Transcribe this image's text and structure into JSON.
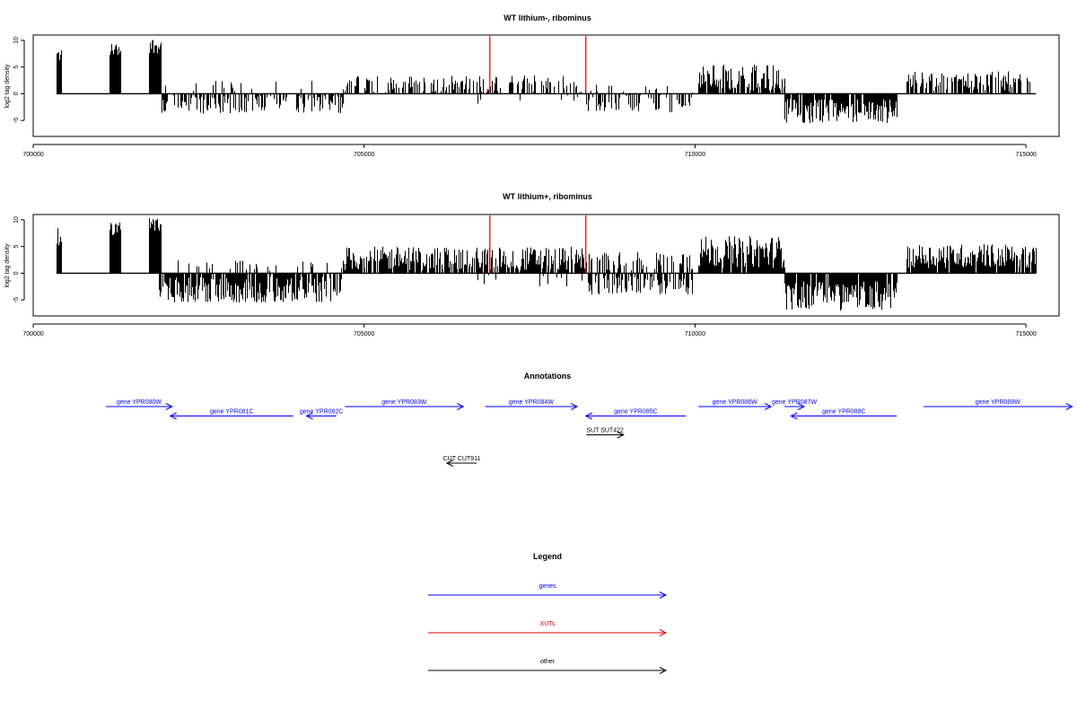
{
  "chart_data": [
    {
      "type": "bar",
      "title": "WT lithium-, ribominus",
      "xlabel": "",
      "ylabel": "log2 tag density",
      "xlim": [
        700000,
        715500
      ],
      "ylim": [
        -8,
        11
      ],
      "x_ticks": [
        700000,
        705000,
        710000,
        715000
      ],
      "x_tick_labels": [
        "700000",
        "705000",
        "710000",
        "715000"
      ],
      "y_ticks": [
        -5,
        0,
        5,
        10
      ],
      "y_tick_labels": [
        "-5",
        "0",
        "5",
        "10"
      ],
      "markers": [
        {
          "x": 706900,
          "top": 10.8,
          "color": "#e00000"
        },
        {
          "x": 708350,
          "top": 10.8,
          "color": "#e00000"
        }
      ],
      "regions": [
        {
          "start": 700350,
          "end": 700420,
          "min": 0,
          "max": 9,
          "sign": 1,
          "density": 1.0
        },
        {
          "start": 701150,
          "end": 701320,
          "min": 4,
          "max": 9.5,
          "sign": 1,
          "density": 1.0
        },
        {
          "start": 701750,
          "end": 701920,
          "min": 4,
          "max": 10.5,
          "sign": 1,
          "density": 1.0
        },
        {
          "start": 701900,
          "end": 704680,
          "min": 0.3,
          "max": 3.8,
          "sign": -1,
          "density": 0.55
        },
        {
          "start": 701950,
          "end": 704680,
          "min": 0.2,
          "max": 2.5,
          "sign": 1,
          "density": 0.1
        },
        {
          "start": 704680,
          "end": 708350,
          "min": 0.3,
          "max": 3.5,
          "sign": 1,
          "density": 0.45
        },
        {
          "start": 706500,
          "end": 708300,
          "min": 0.2,
          "max": 2.0,
          "sign": -1,
          "density": 0.06
        },
        {
          "start": 708350,
          "end": 709950,
          "min": 0.2,
          "max": 3.5,
          "sign": -1,
          "density": 0.35
        },
        {
          "start": 708350,
          "end": 709950,
          "min": 0.2,
          "max": 2.0,
          "sign": 1,
          "density": 0.1
        },
        {
          "start": 710050,
          "end": 711350,
          "min": 0.5,
          "max": 5.5,
          "sign": 1,
          "density": 0.85
        },
        {
          "start": 711350,
          "end": 713050,
          "min": 1.0,
          "max": 5.6,
          "sign": -1,
          "density": 0.9
        },
        {
          "start": 713200,
          "end": 715150,
          "min": 0.3,
          "max": 4.2,
          "sign": 1,
          "density": 0.6
        }
      ]
    },
    {
      "type": "bar",
      "title": "WT lithium+, ribominus",
      "xlabel": "",
      "ylabel": "log2 tag density",
      "xlim": [
        700000,
        715500
      ],
      "ylim": [
        -8,
        11
      ],
      "x_ticks": [
        700000,
        705000,
        710000,
        715000
      ],
      "x_tick_labels": [
        "700000",
        "705000",
        "710000",
        "715000"
      ],
      "y_ticks": [
        -5,
        0,
        5,
        10
      ],
      "y_tick_labels": [
        "-5",
        "0",
        "5",
        "10"
      ],
      "markers": [
        {
          "x": 706900,
          "top": 10.8,
          "color": "#e00000"
        },
        {
          "x": 708350,
          "top": 10.8,
          "color": "#e00000"
        }
      ],
      "regions": [
        {
          "start": 700350,
          "end": 700420,
          "min": 0,
          "max": 8.5,
          "sign": 1,
          "density": 1.0
        },
        {
          "start": 701150,
          "end": 701320,
          "min": 4,
          "max": 9.5,
          "sign": 1,
          "density": 1.0
        },
        {
          "start": 701750,
          "end": 701920,
          "min": 4,
          "max": 10.5,
          "sign": 1,
          "density": 1.0
        },
        {
          "start": 701900,
          "end": 704650,
          "min": 0.5,
          "max": 5.5,
          "sign": -1,
          "density": 0.85
        },
        {
          "start": 701950,
          "end": 704650,
          "min": 0.2,
          "max": 2.5,
          "sign": 1,
          "density": 0.15
        },
        {
          "start": 704650,
          "end": 708350,
          "min": 0.5,
          "max": 5.0,
          "sign": 1,
          "density": 0.8
        },
        {
          "start": 706500,
          "end": 708300,
          "min": 0.2,
          "max": 2.5,
          "sign": -1,
          "density": 0.1
        },
        {
          "start": 708350,
          "end": 709950,
          "min": 0.3,
          "max": 4.0,
          "sign": -1,
          "density": 0.55
        },
        {
          "start": 708350,
          "end": 709950,
          "min": 0.3,
          "max": 4.0,
          "sign": 1,
          "density": 0.35
        },
        {
          "start": 710050,
          "end": 711350,
          "min": 1.0,
          "max": 7.0,
          "sign": 1,
          "density": 0.95
        },
        {
          "start": 711350,
          "end": 713050,
          "min": 1.5,
          "max": 7.0,
          "sign": -1,
          "density": 0.95
        },
        {
          "start": 713200,
          "end": 715150,
          "min": 1.0,
          "max": 5.5,
          "sign": 1,
          "density": 0.9
        }
      ]
    }
  ],
  "annotations": {
    "title": "Annotations",
    "xlim": [
      700000,
      715500
    ],
    "items": [
      {
        "label": "gene YPR080W",
        "start": 701100,
        "end": 702100,
        "row": 0,
        "strand": "+",
        "color": "#0000ff"
      },
      {
        "label": "gene YPR081C",
        "start": 702070,
        "end": 703930,
        "row": 1,
        "strand": "-",
        "color": "#0000ff"
      },
      {
        "label": "gene YPR082C",
        "start": 704130,
        "end": 704580,
        "row": 1,
        "strand": "-",
        "color": "#0000ff"
      },
      {
        "label": "gene YPR083W",
        "start": 704710,
        "end": 706500,
        "row": 0,
        "strand": "+",
        "color": "#0000ff"
      },
      {
        "label": "gene YPR084W",
        "start": 706830,
        "end": 708220,
        "row": 0,
        "strand": "+",
        "color": "#0000ff"
      },
      {
        "label": "gene YPR085C",
        "start": 708350,
        "end": 709860,
        "row": 1,
        "strand": "-",
        "color": "#0000ff"
      },
      {
        "label": "gene YPR086W",
        "start": 710050,
        "end": 711150,
        "row": 0,
        "strand": "+",
        "color": "#0000ff"
      },
      {
        "label": "gene YPR087W",
        "start": 711350,
        "end": 711650,
        "row": 0,
        "strand": "+",
        "color": "#0000ff"
      },
      {
        "label": "gene YPR088C",
        "start": 711450,
        "end": 713050,
        "row": 1,
        "strand": "-",
        "color": "#0000ff"
      },
      {
        "label": "gene YPR089W",
        "start": 713450,
        "end": 715700,
        "row": 0,
        "strand": "+",
        "color": "#0000ff"
      },
      {
        "label": "SUT SUT422",
        "start": 708360,
        "end": 708920,
        "row": 3,
        "strand": "+",
        "color": "#000000"
      },
      {
        "label": "CUT CUT911",
        "start": 706250,
        "end": 706700,
        "row": 6,
        "strand": "-",
        "color": "#000000"
      }
    ]
  },
  "legend": {
    "title": "Legend",
    "items": [
      {
        "label": "genes",
        "color": "#0000ff"
      },
      {
        "label": "XUTs",
        "color": "#e00000"
      },
      {
        "label": "other",
        "color": "#000000"
      }
    ]
  }
}
